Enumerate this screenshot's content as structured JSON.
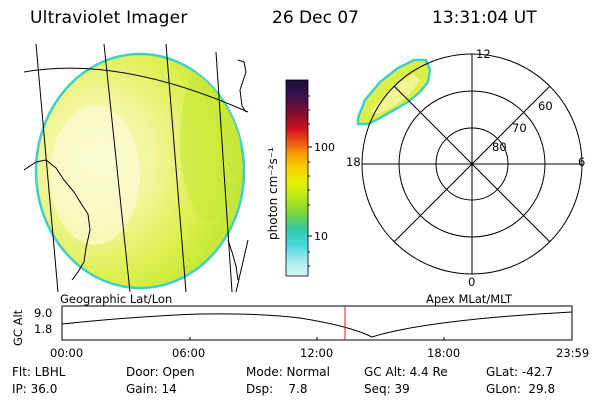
{
  "header": {
    "title": "Ultraviolet Imager",
    "date": "26 Dec 07",
    "time": "13:31:04 UT"
  },
  "left_panel": {
    "caption": "Geographic Lat/Lon"
  },
  "right_panel": {
    "caption": "Apex MLat/MLT",
    "mlt_labels": {
      "top": "12",
      "left": "18",
      "right": "6",
      "bottom": "0"
    },
    "lat_labels": [
      "60",
      "70",
      "80"
    ]
  },
  "colorbar": {
    "label": "photon cm⁻²s⁻¹",
    "tick_labels": [
      "100",
      "10"
    ],
    "colors_top_to_bottom": [
      "#1a1038",
      "#3a1050",
      "#8a0f2a",
      "#d01020",
      "#ee5a10",
      "#f7a000",
      "#f7d100",
      "#e8f000",
      "#b8e81a",
      "#7ad63a",
      "#33c9a0",
      "#44d6e0",
      "#a5eaef",
      "#d6f5f6"
    ]
  },
  "altitude_strip": {
    "axis_label": "GC Alt",
    "ytick_labels": [
      "9.0",
      "1.8"
    ],
    "xtick_labels": [
      "00:00",
      "06:00",
      "12:00",
      "18:00",
      "23:59"
    ],
    "marker_time": "13:31",
    "marker_color": "#cc2222"
  },
  "footer": {
    "row1": {
      "filter": "Flt: LBHL",
      "door": "Door: Open",
      "mode": "Mode: Normal",
      "gc_alt": "GC Alt: 4.4 Re",
      "glat": "GLat: -42.7"
    },
    "row2": {
      "ip": "IP: 36.0",
      "gain": "Gain: 14",
      "dsp": "Dsp:    7.8",
      "seq": "Seq: 39",
      "glon": "GLon:  29.8"
    }
  }
}
